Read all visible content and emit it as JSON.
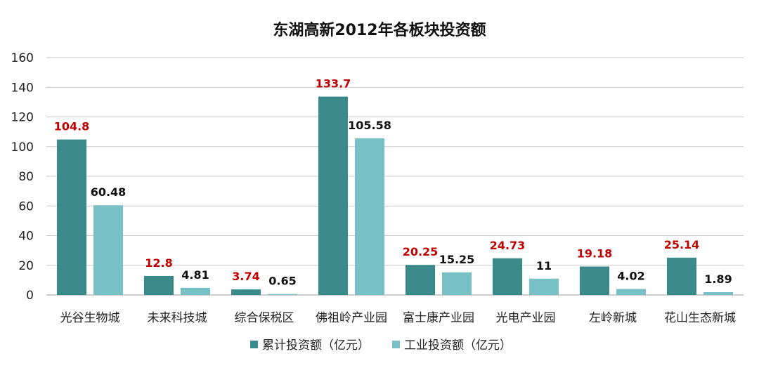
{
  "chart_data": {
    "type": "bar",
    "title": "东湖高新2012年各板块投资额",
    "categories": [
      "光谷生物城",
      "未来科技城",
      "综合保税区",
      "佛祖岭产业园",
      "富士康产业园",
      "光电产业园",
      "左岭新城",
      "花山生态新城"
    ],
    "series": [
      {
        "name": "累计投资额（亿元）",
        "values": [
          104.8,
          12.8,
          3.74,
          133.7,
          20.25,
          24.73,
          19.18,
          25.14
        ],
        "labels": [
          "104.8",
          "12.8",
          "3.74",
          "133.7",
          "20.25",
          "24.73",
          "19.18",
          "25.14"
        ],
        "color": "#3a8a8c",
        "label_color": "#c00000"
      },
      {
        "name": "工业投资额（亿元）",
        "values": [
          60.48,
          4.81,
          0.65,
          105.58,
          15.25,
          11,
          4.02,
          1.89
        ],
        "labels": [
          "60.48",
          "4.81",
          "0.65",
          "105.58",
          "15.25",
          "11",
          "4.02",
          "1.89"
        ],
        "color": "#77c0c5",
        "label_color": "#111111"
      }
    ],
    "yticks": [
      "0",
      "20",
      "40",
      "60",
      "80",
      "100",
      "120",
      "140",
      "160"
    ],
    "ylim": [
      0,
      160
    ],
    "grid": true,
    "legend": "bottom"
  }
}
